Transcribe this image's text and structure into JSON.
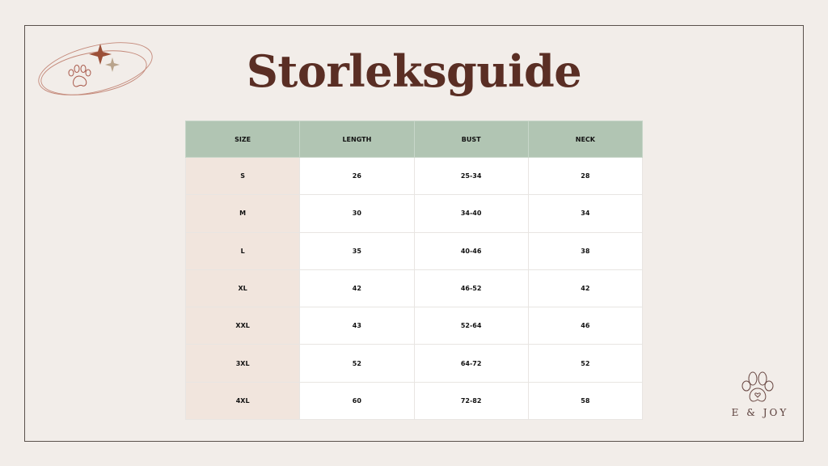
{
  "title": "Storleksguide",
  "table": {
    "headers": [
      "SIZE",
      "LENGTH",
      "BUST",
      "NECK"
    ],
    "rows": [
      [
        "S",
        "26",
        "25-34",
        "28"
      ],
      [
        "M",
        "30",
        "34-40",
        "34"
      ],
      [
        "L",
        "35",
        "40-46",
        "38"
      ],
      [
        "XL",
        "42",
        "46-52",
        "42"
      ],
      [
        "XXL",
        "43",
        "52-64",
        "46"
      ],
      [
        "3XL",
        "52",
        "64-72",
        "52"
      ],
      [
        "4XL",
        "60",
        "72-82",
        "58"
      ]
    ]
  },
  "brand": "E & JOY",
  "colors": {
    "background": "#f2ede9",
    "title": "#5a2e24",
    "header": "#b1c5b3",
    "size_column": "#f1e5dd"
  }
}
